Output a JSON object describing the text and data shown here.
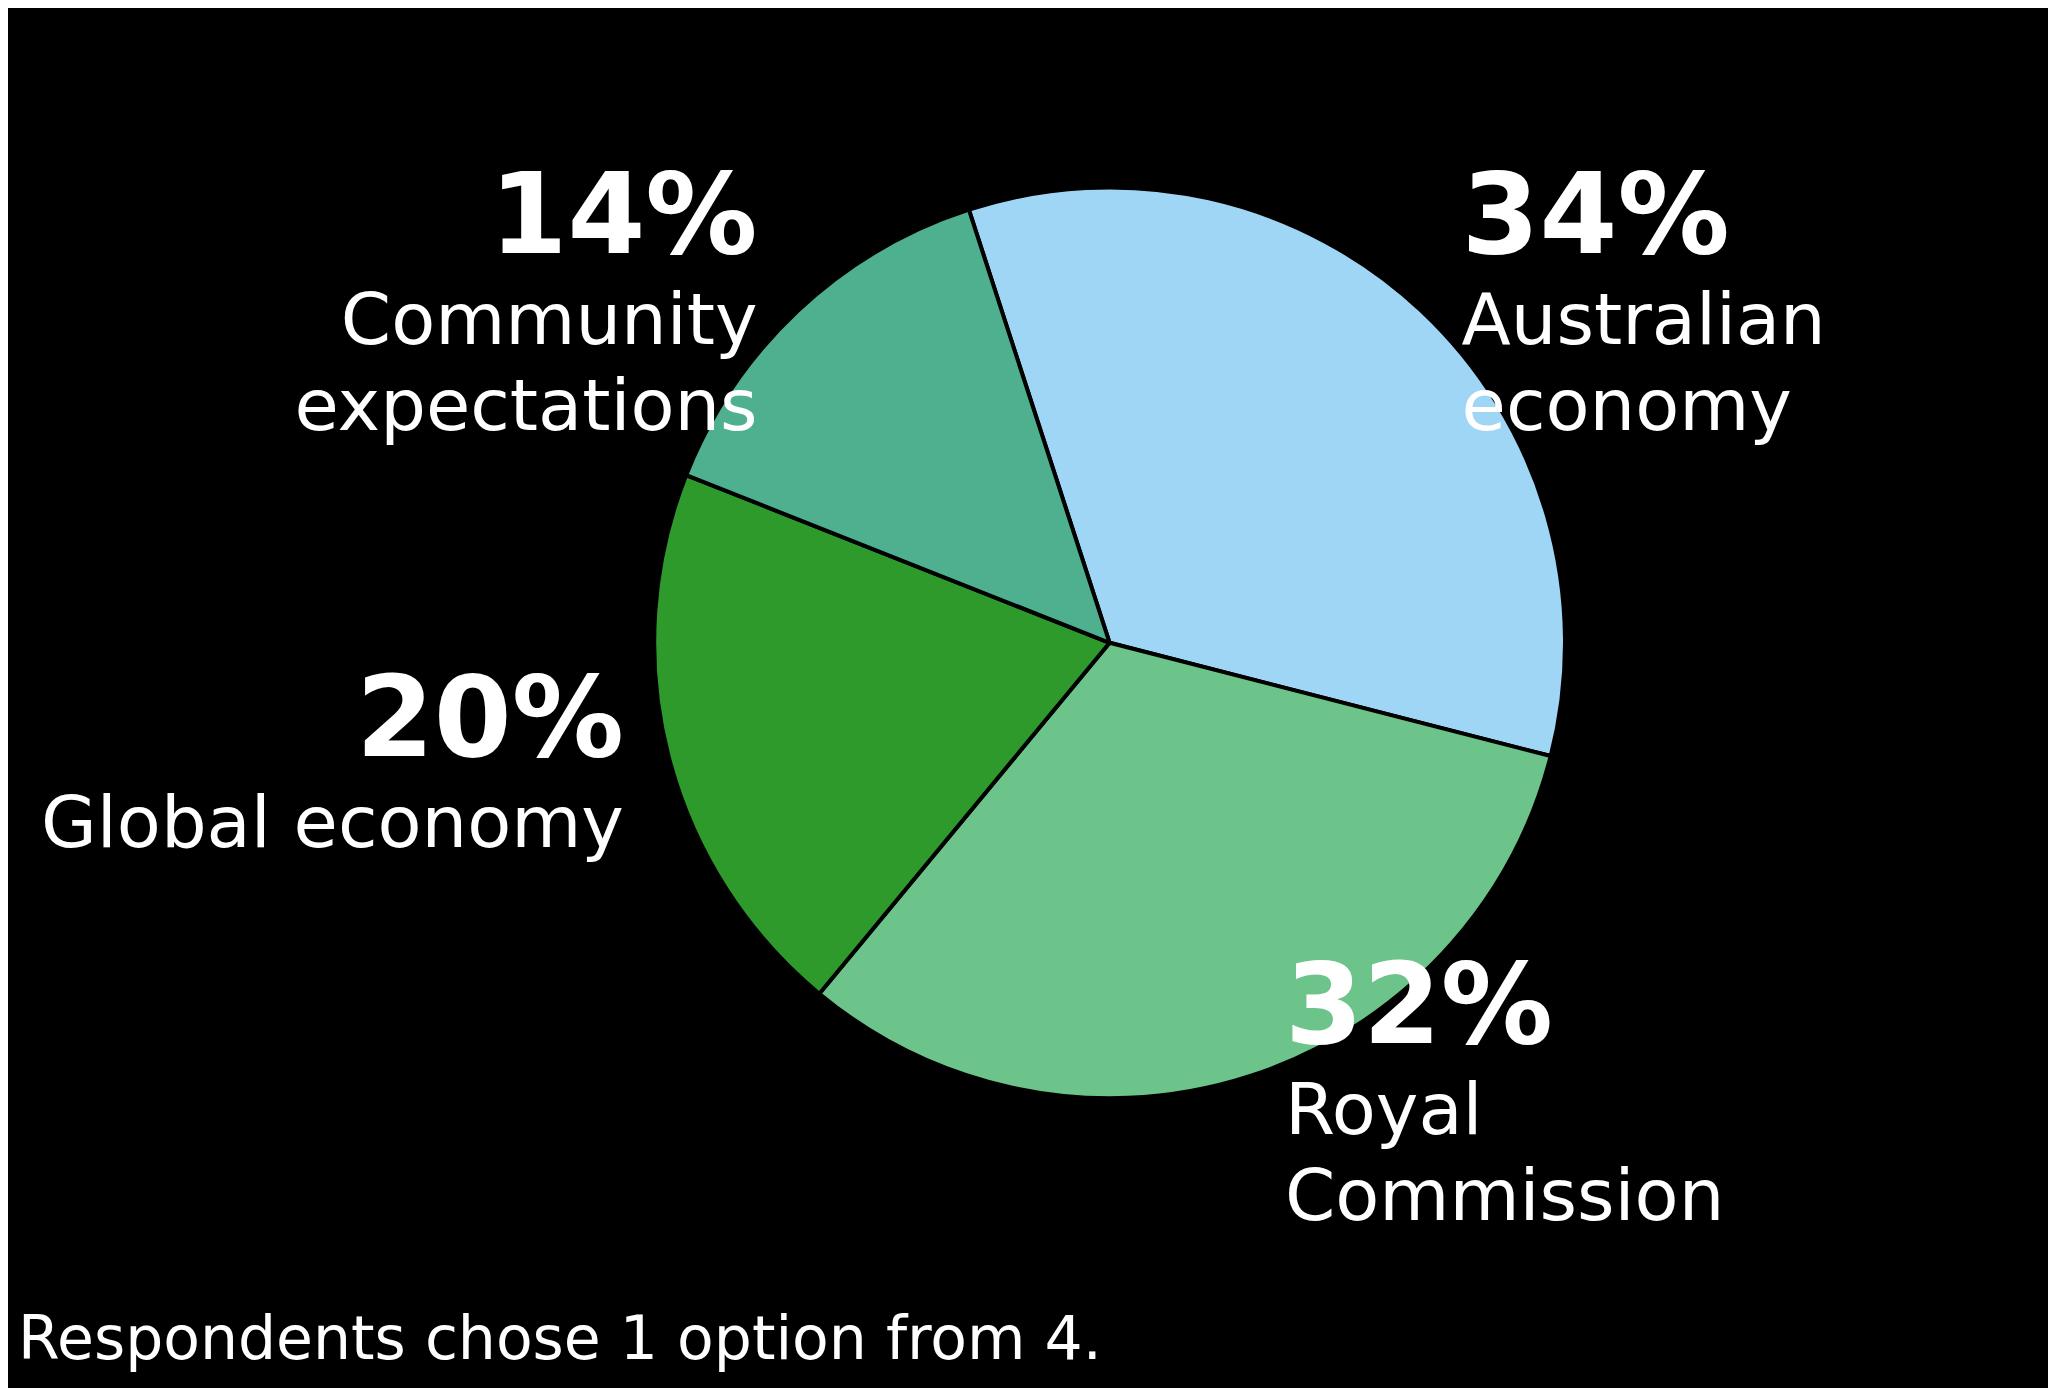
{
  "chart_data": {
    "type": "pie",
    "categories": [
      "Australian economy",
      "Royal Commission",
      "Global economy",
      "Community expectations"
    ],
    "values": [
      34,
      32,
      20,
      14
    ],
    "value_labels": [
      "34%",
      "32%",
      "20%",
      "14%"
    ],
    "colors": [
      "#9fd6f5",
      "#6cc48a",
      "#2f9a2c",
      "#4fb090"
    ],
    "annotations": [
      "Respondents chose 1 option from 4."
    ]
  }
}
